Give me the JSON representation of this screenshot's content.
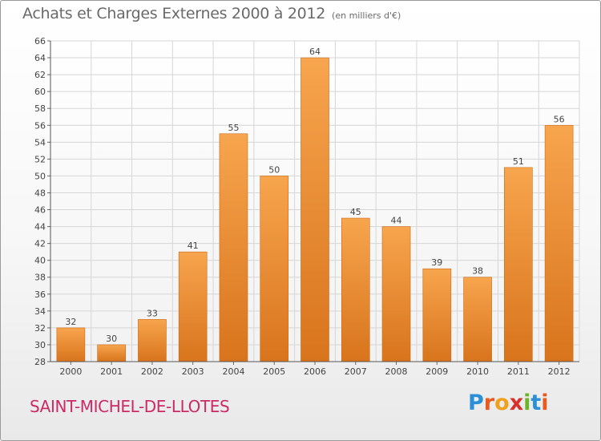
{
  "header": {
    "title": "Achats et Charges Externes 2000 à 2012",
    "unit": "(en milliers d'€)"
  },
  "footer": {
    "commune": "SAINT-MICHEL-DE-LLOTES",
    "logo_text": "Proxiti"
  },
  "colors": {
    "bar_top": "#f7a54e",
    "bar_bottom": "#d8741c",
    "commune_text": "#cc2a66",
    "grid": "#d6d6d6",
    "axis_text": "#444444"
  },
  "chart_data": {
    "type": "bar",
    "title": "Achats et Charges Externes 2000 à 2012",
    "subtitle": "(en milliers d'€)",
    "xlabel": "",
    "ylabel": "",
    "categories": [
      "2000",
      "2001",
      "2002",
      "2003",
      "2004",
      "2005",
      "2006",
      "2007",
      "2008",
      "2009",
      "2010",
      "2011",
      "2012"
    ],
    "values": [
      32,
      30,
      33,
      41,
      55,
      50,
      64,
      45,
      44,
      39,
      38,
      51,
      56
    ],
    "ylim": [
      28,
      66
    ],
    "yticks": [
      28,
      30,
      32,
      34,
      36,
      38,
      40,
      42,
      44,
      46,
      48,
      50,
      52,
      54,
      56,
      58,
      60,
      62,
      64,
      66
    ],
    "grid": true,
    "legend": "none"
  }
}
